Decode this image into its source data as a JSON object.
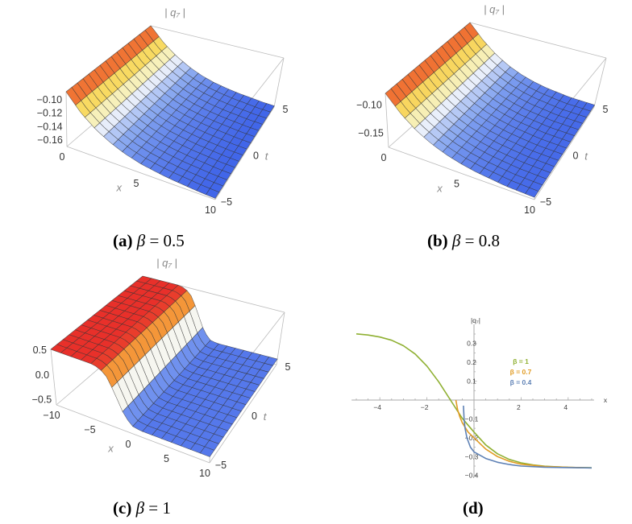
{
  "captions": [
    {
      "label": "(a)",
      "param": "β",
      "eq": "= 0.5"
    },
    {
      "label": "(b)",
      "param": "β",
      "eq": "= 0.8"
    },
    {
      "label": "(c)",
      "param": "β",
      "eq": "= 1"
    },
    {
      "label": "(d)",
      "param": "",
      "eq": ""
    }
  ],
  "colors": {
    "high": "#e8302a",
    "mid_high": "#f9e66a",
    "mid": "#f6f8fc",
    "low": "#3a5fe8",
    "mesh": "#333333",
    "box": "#bbbbbb"
  },
  "chart_data": [
    {
      "type": "surface",
      "panel": "a",
      "zlabel": "| q₇ |",
      "xlabel": "x",
      "ylabel": "t",
      "xlim": [
        0,
        10
      ],
      "tlim": [
        -5,
        5
      ],
      "zlim": [
        -0.171,
        -0.089
      ],
      "xticks": [
        "0",
        "5",
        "10"
      ],
      "xtick_values": [
        0,
        5,
        10
      ],
      "tticks": [
        "-5",
        "0",
        "5"
      ],
      "ttick_values": [
        -5,
        0,
        5
      ],
      "zticks": [
        "-0.10",
        "-0.12",
        "-0.14",
        "-0.16"
      ],
      "ztick_values": [
        -0.1,
        -0.12,
        -0.14,
        -0.16
      ],
      "x": [
        0,
        1,
        2,
        3,
        4,
        5,
        6,
        7,
        8,
        9,
        10
      ],
      "z_profile": [
        -0.089,
        -0.113,
        -0.13,
        -0.142,
        -0.151,
        -0.157,
        -0.161,
        -0.164,
        -0.166,
        -0.168,
        -0.169
      ]
    },
    {
      "type": "surface",
      "panel": "b",
      "zlabel": "| q₇ |",
      "xlabel": "x",
      "ylabel": "t",
      "xlim": [
        0,
        10
      ],
      "tlim": [
        -5,
        5
      ],
      "zlim": [
        -0.176,
        -0.081
      ],
      "xticks": [
        "0",
        "5",
        "10"
      ],
      "xtick_values": [
        0,
        5,
        10
      ],
      "tticks": [
        "-5",
        "0",
        "5"
      ],
      "ttick_values": [
        -5,
        0,
        5
      ],
      "zticks": [
        "-0.10",
        "-0.15"
      ],
      "ztick_values": [
        -0.1,
        -0.15
      ],
      "x": [
        0,
        1,
        2,
        3,
        4,
        5,
        6,
        7,
        8,
        9,
        10
      ],
      "z_profile": [
        -0.081,
        -0.108,
        -0.128,
        -0.142,
        -0.152,
        -0.159,
        -0.164,
        -0.167,
        -0.17,
        -0.171,
        -0.172
      ]
    },
    {
      "type": "surface",
      "panel": "c",
      "zlabel": "| q₇ |",
      "xlabel": "x",
      "ylabel": "t",
      "xlim": [
        -10,
        10
      ],
      "tlim": [
        -5,
        5
      ],
      "zlim": [
        -0.62,
        0.5
      ],
      "xticks": [
        "-10",
        "-5",
        "0",
        "5",
        "10"
      ],
      "xtick_values": [
        -10,
        -5,
        0,
        5,
        10
      ],
      "tticks": [
        "-5",
        "0",
        "5"
      ],
      "ttick_values": [
        -5,
        0,
        5
      ],
      "zticks": [
        "0.5",
        "0.0",
        "-0.5"
      ],
      "ztick_values": [
        0.5,
        0.0,
        -0.5
      ],
      "x": [
        -10,
        -9,
        -8,
        -7,
        -6,
        -5,
        -4,
        -3,
        -2,
        -1,
        0,
        1,
        2,
        3,
        4,
        5,
        6,
        7,
        8,
        9,
        10
      ],
      "z_profile": [
        0.5,
        0.5,
        0.5,
        0.5,
        0.5,
        0.5,
        0.47,
        0.33,
        0.0,
        -0.33,
        -0.47,
        -0.5,
        -0.5,
        -0.5,
        -0.5,
        -0.5,
        -0.5,
        -0.5,
        -0.5,
        -0.5,
        -0.5
      ]
    },
    {
      "type": "line",
      "panel": "d",
      "ylabel": "|q₇|",
      "xlabel": "x",
      "xlim": [
        -5,
        5
      ],
      "ylim": [
        -0.4,
        0.35
      ],
      "xticks": [
        -4,
        -2,
        2,
        4
      ],
      "yticks": [
        0.3,
        0.2,
        0.1,
        -0.1,
        -0.2,
        -0.3,
        -0.4
      ],
      "grid": false,
      "legend_placement": "right, above x-axis",
      "series": [
        {
          "name": "β = 1",
          "color": "#8fb032",
          "x": [
            -5,
            -4.5,
            -4,
            -3.5,
            -3,
            -2.5,
            -2,
            -1.5,
            -1,
            -0.5,
            0,
            0.5,
            1,
            1.5,
            2,
            2.5,
            3,
            3.5,
            4,
            4.5,
            5
          ],
          "y": [
            0.351,
            0.345,
            0.334,
            0.317,
            0.288,
            0.244,
            0.18,
            0.097,
            0,
            -0.097,
            -0.17,
            -0.238,
            -0.285,
            -0.315,
            -0.333,
            -0.344,
            -0.351,
            -0.354,
            -0.357,
            -0.358,
            -0.359
          ]
        },
        {
          "name": "β = 0.7",
          "color": "#e19c24",
          "x": [
            -0.77,
            -0.7,
            -0.6,
            -0.5,
            -0.25,
            0,
            0.5,
            1,
            1.5,
            2,
            3,
            4,
            5
          ],
          "y": [
            0,
            -0.05,
            -0.09,
            -0.12,
            -0.17,
            -0.2,
            -0.26,
            -0.3,
            -0.325,
            -0.34,
            -0.352,
            -0.357,
            -0.36
          ]
        },
        {
          "name": "β = 0.4",
          "color": "#5e81b5",
          "x": [
            -0.45,
            -0.42,
            -0.38,
            -0.3,
            -0.15,
            0,
            0.5,
            1,
            1.5,
            2,
            3,
            4,
            5
          ],
          "y": [
            -0.03,
            -0.1,
            -0.15,
            -0.2,
            -0.25,
            -0.275,
            -0.31,
            -0.33,
            -0.342,
            -0.35,
            -0.356,
            -0.358,
            -0.36
          ]
        }
      ]
    }
  ]
}
